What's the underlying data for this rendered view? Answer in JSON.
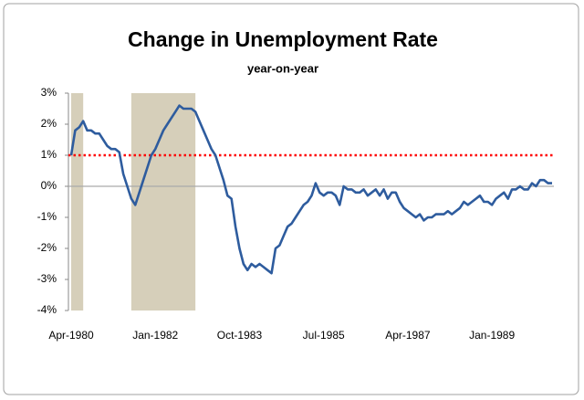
{
  "chart_data": {
    "type": "line",
    "title": "Change in Unemployment Rate",
    "subtitle": "year-on-year",
    "categories": [
      "Apr-1980",
      null,
      null,
      null,
      null,
      null,
      null,
      null,
      null,
      null,
      null,
      null,
      null,
      null,
      null,
      null,
      null,
      null,
      null,
      null,
      null,
      "Jan-1982",
      null,
      null,
      null,
      null,
      null,
      null,
      null,
      null,
      null,
      null,
      null,
      null,
      null,
      null,
      null,
      null,
      null,
      null,
      null,
      null,
      "Oct-1983",
      null,
      null,
      null,
      null,
      null,
      null,
      null,
      null,
      null,
      null,
      null,
      null,
      null,
      null,
      null,
      null,
      null,
      null,
      null,
      null,
      "Jul-1985",
      null,
      null,
      null,
      null,
      null,
      null,
      null,
      null,
      null,
      null,
      null,
      null,
      null,
      null,
      null,
      null,
      null,
      null,
      null,
      null,
      "Apr-1987",
      null,
      null,
      null,
      null,
      null,
      null,
      null,
      null,
      null,
      null,
      null,
      null,
      null,
      null,
      null,
      null,
      null,
      null,
      null,
      null,
      "Jan-1989",
      null,
      null,
      null,
      null,
      null,
      null,
      null,
      null,
      null,
      null,
      null,
      null,
      null,
      null,
      null
    ],
    "series": [
      {
        "color": "#2e5c9e",
        "values": [
          1.0,
          1.8,
          1.9,
          2.1,
          1.8,
          1.8,
          1.7,
          1.7,
          1.5,
          1.3,
          1.2,
          1.2,
          1.1,
          0.4,
          0.0,
          -0.4,
          -0.6,
          -0.2,
          0.2,
          0.6,
          1.0,
          1.2,
          1.5,
          1.8,
          2.0,
          2.2,
          2.4,
          2.6,
          2.5,
          2.5,
          2.5,
          2.4,
          2.1,
          1.8,
          1.5,
          1.2,
          1.0,
          0.6,
          0.2,
          -0.3,
          -0.4,
          -1.3,
          -2.0,
          -2.5,
          -2.7,
          -2.5,
          -2.6,
          -2.5,
          -2.6,
          -2.7,
          -2.8,
          -2.0,
          -1.9,
          -1.6,
          -1.3,
          -1.2,
          -1.0,
          -0.8,
          -0.6,
          -0.5,
          -0.3,
          0.1,
          -0.2,
          -0.3,
          -0.2,
          -0.2,
          -0.3,
          -0.6,
          0.0,
          -0.1,
          -0.1,
          -0.2,
          -0.2,
          -0.1,
          -0.3,
          -0.2,
          -0.1,
          -0.3,
          -0.1,
          -0.4,
          -0.2,
          -0.2,
          -0.5,
          -0.7,
          -0.8,
          -0.9,
          -1.0,
          -0.9,
          -1.1,
          -1.0,
          -1.0,
          -0.9,
          -0.9,
          -0.9,
          -0.8,
          -0.9,
          -0.8,
          -0.7,
          -0.5,
          -0.6,
          -0.5,
          -0.4,
          -0.3,
          -0.5,
          -0.5,
          -0.6,
          -0.4,
          -0.3,
          -0.2,
          -0.4,
          -0.1,
          -0.1,
          0.0,
          -0.1,
          -0.1,
          0.1,
          0.0,
          0.2,
          0.2,
          0.1,
          0.1
        ]
      }
    ],
    "ylim": [
      -4,
      3
    ],
    "yticks": [
      {
        "value": -4,
        "label": "-4%"
      },
      {
        "value": -3,
        "label": "-3%"
      },
      {
        "value": -2,
        "label": "-2%"
      },
      {
        "value": -1,
        "label": "-1%"
      },
      {
        "value": 0,
        "label": "0%"
      },
      {
        "value": 1,
        "label": "1%"
      },
      {
        "value": 2,
        "label": "2%"
      },
      {
        "value": 3,
        "label": "3%"
      }
    ],
    "shaded_ranges": [
      [
        0,
        3
      ],
      [
        15,
        31
      ]
    ],
    "shade_color": "#d6cfba",
    "reference_line": {
      "value": 1,
      "color": "#ff0000"
    },
    "grid": false
  }
}
